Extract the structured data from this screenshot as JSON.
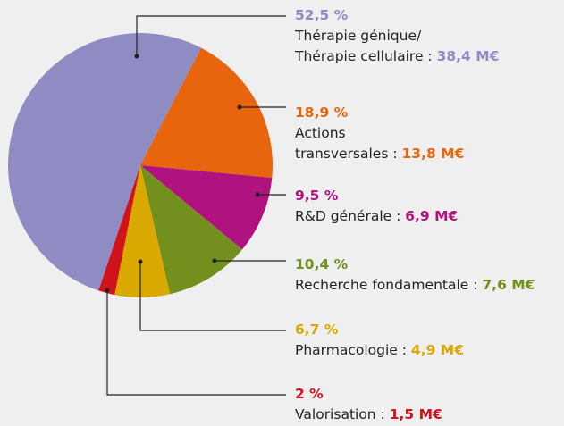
{
  "chart_data": {
    "type": "pie",
    "categories": [
      "Thérapie génique/\nThérapie cellulaire",
      "Actions\ntransversales",
      "R&D générale",
      "Recherche fondamentale",
      "Pharmacologie",
      "Valorisation"
    ],
    "values": [
      52.5,
      18.9,
      9.5,
      10.4,
      6.7,
      2
    ],
    "value_labels": [
      "52,5 %",
      "18,9 %",
      "9,5 %",
      "10,4 %",
      "6,7 %",
      "2 %"
    ],
    "amount_labels": [
      "38,4 M€",
      "13,8 M€",
      "6,9 M€",
      "7,6 M€",
      "4,9 M€",
      "1,5 M€"
    ],
    "separator": " : ",
    "colors": [
      "#8f8cc4",
      "#e8650e",
      "#b0127f",
      "#73901f",
      "#d9a900",
      "#d0121b"
    ]
  }
}
